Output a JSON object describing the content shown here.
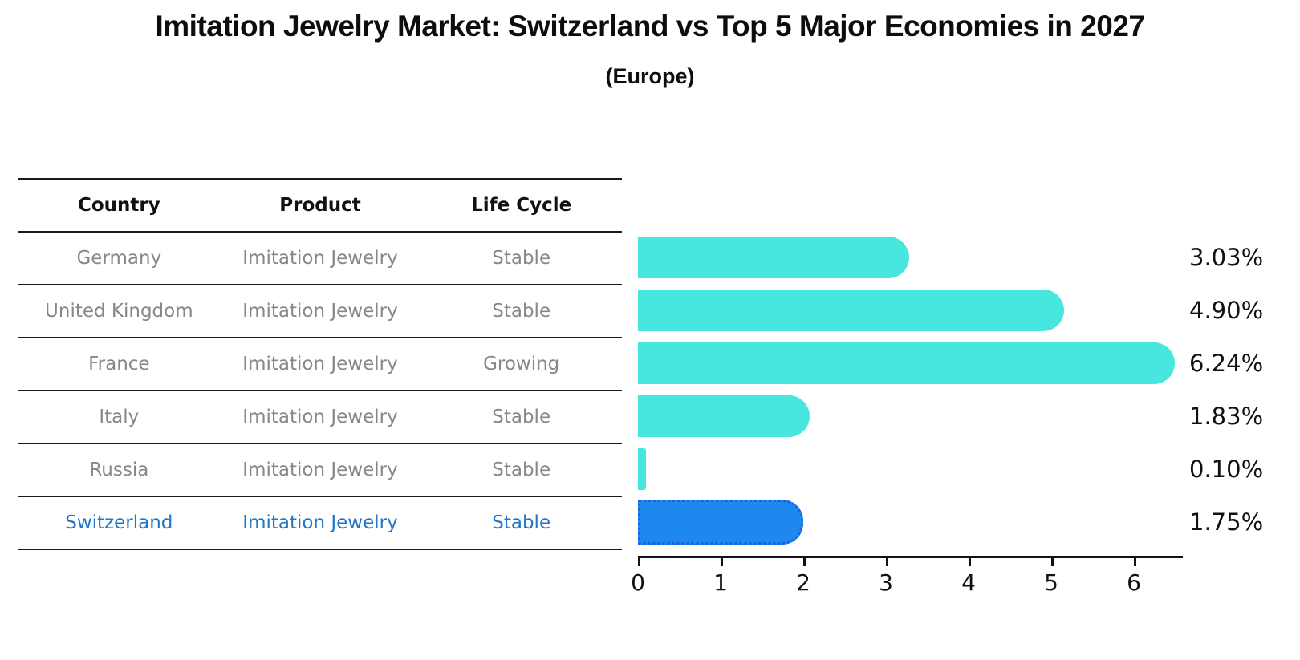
{
  "title": "Imitation Jewelry Market: Switzerland vs Top 5 Major Economies in 2027",
  "subtitle": "(Europe)",
  "table": {
    "headers": [
      "Country",
      "Product",
      "Life Cycle"
    ],
    "rows": [
      {
        "country": "Germany",
        "product": "Imitation Jewelry",
        "life_cycle": "Stable"
      },
      {
        "country": "United Kingdom",
        "product": "Imitation Jewelry",
        "life_cycle": "Stable"
      },
      {
        "country": "France",
        "product": "Imitation Jewelry",
        "life_cycle": "Growing"
      },
      {
        "country": "Italy",
        "product": "Imitation Jewelry",
        "life_cycle": "Stable"
      },
      {
        "country": "Russia",
        "product": "Imitation Jewelry",
        "life_cycle": "Stable"
      },
      {
        "country": "Switzerland",
        "product": "Imitation Jewelry",
        "life_cycle": "Stable"
      }
    ],
    "highlight_row_index": 5
  },
  "chart_data": {
    "type": "bar",
    "orientation": "horizontal",
    "categories": [
      "Germany",
      "United Kingdom",
      "France",
      "Italy",
      "Russia",
      "Switzerland"
    ],
    "values": [
      3.03,
      4.9,
      6.24,
      1.83,
      0.1,
      1.75
    ],
    "value_labels": [
      "3.03%",
      "4.90%",
      "6.24%",
      "1.83%",
      "0.10%",
      "1.75%"
    ],
    "x_tick_labels": [
      "0",
      "1",
      "2",
      "3",
      "4",
      "5",
      "6"
    ],
    "xlim": [
      0,
      6.6
    ],
    "grid": false,
    "legend": false,
    "highlight_index": 5,
    "colors": {
      "bar": "#47E7E0",
      "highlight_bar": "#1E87F0",
      "highlight_border": "#1564D8",
      "highlight_text": "#2176C7",
      "row_text": "#878787",
      "header_text": "#111111",
      "axis": "#111111"
    }
  }
}
